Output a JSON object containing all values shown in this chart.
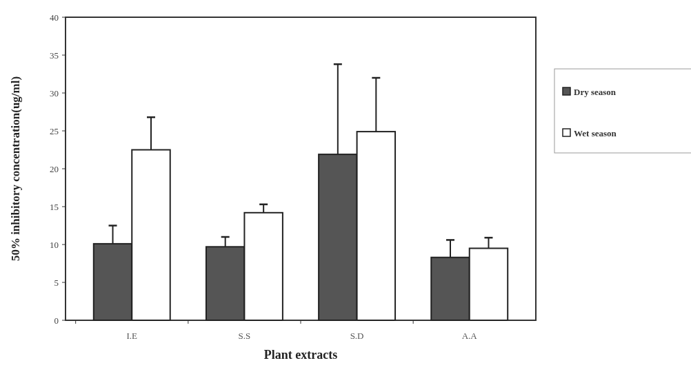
{
  "chart_data": {
    "type": "bar",
    "xlabel": "Plant extracts",
    "ylabel": "50% inhibitory concentration(ug/ml)",
    "categories": [
      "I.E",
      "S.S",
      "S.D",
      "A.A"
    ],
    "series": [
      {
        "name": "Dry season",
        "color": "#555555",
        "values": [
          10.1,
          9.7,
          21.9,
          8.3
        ],
        "errors": [
          [
            10.1,
            12.5
          ],
          [
            9.7,
            11.0
          ],
          [
            21.9,
            33.8
          ],
          [
            8.3,
            10.6
          ]
        ]
      },
      {
        "name": "Wet season",
        "color": "#ffffff",
        "values": [
          22.5,
          14.2,
          24.9,
          9.5
        ],
        "errors": [
          [
            22.5,
            26.8
          ],
          [
            14.2,
            15.3
          ],
          [
            24.9,
            32.0
          ],
          [
            9.5,
            10.9
          ]
        ]
      }
    ],
    "ylim": [
      0,
      40
    ],
    "yticks": [
      0,
      5,
      10,
      15,
      20,
      25,
      30,
      35,
      40
    ],
    "grid": false,
    "legend": "right"
  }
}
